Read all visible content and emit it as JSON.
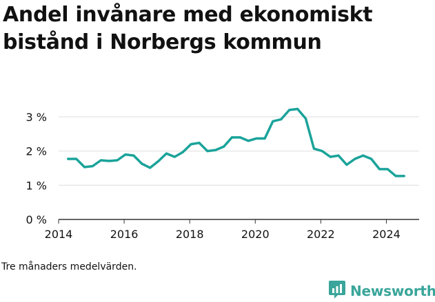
{
  "title": "Andel invånare med ekonomiskt bistånd i Norbergs kommun",
  "footnote": "Tre månaders medelvärden.",
  "brand": {
    "name": "Newsworthy",
    "icon": "newsworthy-logo-icon",
    "color": "#3aa59a"
  },
  "colors": {
    "line": "#1aa39a",
    "grid": "#dddddd",
    "axis": "#333333",
    "text": "#111111"
  },
  "chart_data": {
    "type": "line",
    "title": "Andel invånare med ekonomiskt bistånd i Norbergs kommun",
    "xlabel": "",
    "ylabel": "",
    "xlim": [
      2014.0,
      2025.0
    ],
    "ylim": [
      0,
      3.4
    ],
    "x_ticks": [
      2014,
      2016,
      2018,
      2020,
      2022,
      2024
    ],
    "x_tick_labels": [
      "2014",
      "2016",
      "2018",
      "2020",
      "2022",
      "2024"
    ],
    "y_ticks": [
      0,
      1,
      2,
      3
    ],
    "y_tick_labels": [
      "0 %",
      "1 %",
      "2 %",
      "3 %"
    ],
    "grid": true,
    "series": [
      {
        "values": [
          [
            2014.29,
            1.77
          ],
          [
            2014.54,
            1.77
          ],
          [
            2014.79,
            1.53
          ],
          [
            2015.04,
            1.56
          ],
          [
            2015.29,
            1.73
          ],
          [
            2015.54,
            1.71
          ],
          [
            2015.79,
            1.73
          ],
          [
            2016.04,
            1.9
          ],
          [
            2016.29,
            1.87
          ],
          [
            2016.54,
            1.63
          ],
          [
            2016.79,
            1.51
          ],
          [
            2017.04,
            1.7
          ],
          [
            2017.29,
            1.93
          ],
          [
            2017.54,
            1.83
          ],
          [
            2017.79,
            1.97
          ],
          [
            2018.04,
            2.2
          ],
          [
            2018.29,
            2.24
          ],
          [
            2018.54,
            2.0
          ],
          [
            2018.79,
            2.03
          ],
          [
            2019.04,
            2.13
          ],
          [
            2019.29,
            2.4
          ],
          [
            2019.54,
            2.4
          ],
          [
            2019.79,
            2.3
          ],
          [
            2020.04,
            2.37
          ],
          [
            2020.29,
            2.37
          ],
          [
            2020.54,
            2.87
          ],
          [
            2020.79,
            2.93
          ],
          [
            2021.04,
            3.2
          ],
          [
            2021.29,
            3.23
          ],
          [
            2021.54,
            2.95
          ],
          [
            2021.79,
            2.07
          ],
          [
            2022.04,
            2.0
          ],
          [
            2022.29,
            1.83
          ],
          [
            2022.54,
            1.87
          ],
          [
            2022.79,
            1.6
          ],
          [
            2023.04,
            1.77
          ],
          [
            2023.29,
            1.87
          ],
          [
            2023.54,
            1.77
          ],
          [
            2023.79,
            1.47
          ],
          [
            2024.04,
            1.47
          ],
          [
            2024.29,
            1.27
          ],
          [
            2024.54,
            1.27
          ]
        ]
      }
    ]
  }
}
